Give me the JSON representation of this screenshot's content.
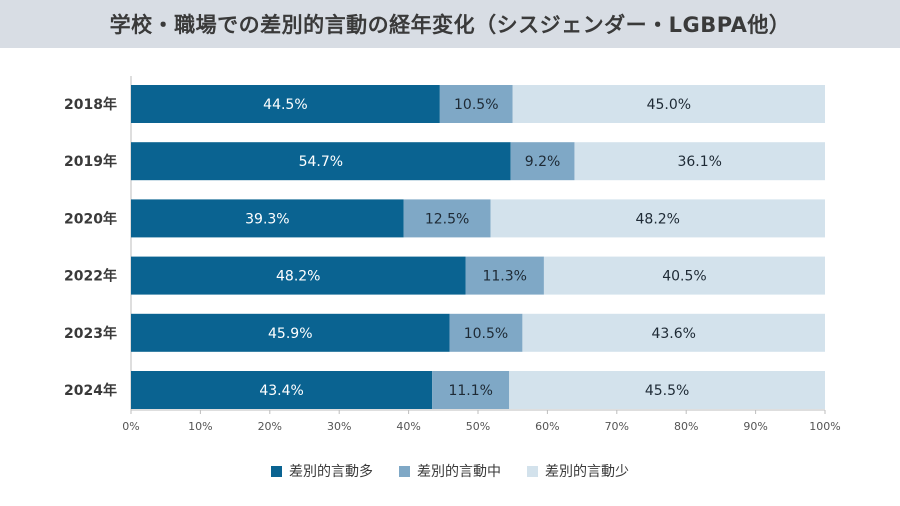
{
  "title": "学校・職場での差別的言動の経年変化（シスジェンダー・LGBPA他）",
  "colors": {
    "high": "#0a6391",
    "mid": "#7fa8c6",
    "low": "#d3e2ec"
  },
  "chart_data": {
    "type": "bar",
    "orientation": "horizontal",
    "stacked": true,
    "categories": [
      "2018年",
      "2019年",
      "2020年",
      "2022年",
      "2023年",
      "2024年"
    ],
    "series": [
      {
        "name": "差別的言動多",
        "values": [
          44.5,
          54.7,
          39.3,
          48.2,
          45.9,
          43.4
        ],
        "labels": [
          "44.5%",
          "54.7%",
          "39.3%",
          "48.2%",
          "45.9%",
          "43.4%"
        ]
      },
      {
        "name": "差別的言動中",
        "values": [
          10.5,
          9.2,
          12.5,
          11.3,
          10.5,
          11.1
        ],
        "labels": [
          "10.5%",
          "9.2%",
          "12.5%",
          "11.3%",
          "10.5%",
          "11.1%"
        ]
      },
      {
        "name": "差別的言動少",
        "values": [
          45.0,
          36.1,
          48.2,
          40.5,
          43.6,
          45.5
        ],
        "labels": [
          "45.0%",
          "36.1%",
          "48.2%",
          "40.5%",
          "43.6%",
          "45.5%"
        ]
      }
    ],
    "xlim": [
      0,
      100
    ],
    "xticks": [
      "0%",
      "10%",
      "20%",
      "30%",
      "40%",
      "50%",
      "60%",
      "70%",
      "80%",
      "90%",
      "100%"
    ],
    "grid": false,
    "legend_position": "bottom"
  }
}
